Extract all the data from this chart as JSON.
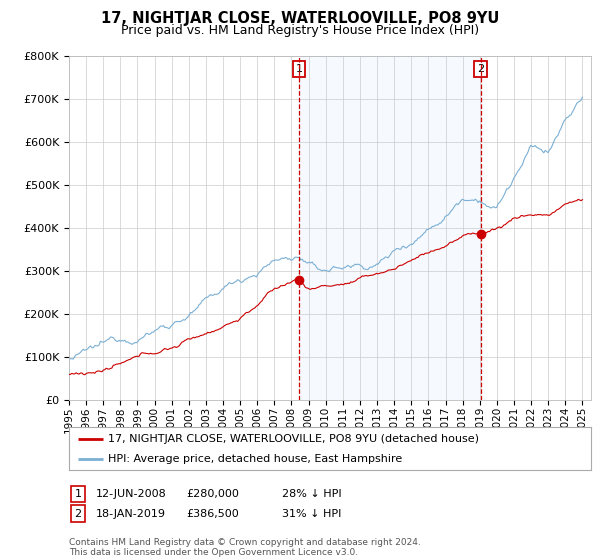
{
  "title": "17, NIGHTJAR CLOSE, WATERLOOVILLE, PO8 9YU",
  "subtitle": "Price paid vs. HM Land Registry's House Price Index (HPI)",
  "ylabel_ticks": [
    "£0",
    "£100K",
    "£200K",
    "£300K",
    "£400K",
    "£500K",
    "£600K",
    "£700K",
    "£800K"
  ],
  "ylim": [
    0,
    800000
  ],
  "xlim_start": 1995.0,
  "xlim_end": 2025.5,
  "sale1_x": 2008.45,
  "sale1_y": 280000,
  "sale1_label": "1",
  "sale1_date": "12-JUN-2008",
  "sale1_price": "£280,000",
  "sale1_hpi": "28% ↓ HPI",
  "sale2_x": 2019.05,
  "sale2_y": 386500,
  "sale2_label": "2",
  "sale2_date": "18-JAN-2019",
  "sale2_price": "£386,500",
  "sale2_hpi": "31% ↓ HPI",
  "line_property_color": "#cc0000",
  "line_hpi_color": "#7bafd4",
  "shade_color": "#ddeeff",
  "marker_box_color": "#cc0000",
  "legend_property_label": "17, NIGHTJAR CLOSE, WATERLOOVILLE, PO8 9YU (detached house)",
  "legend_hpi_label": "HPI: Average price, detached house, East Hampshire",
  "footnote": "Contains HM Land Registry data © Crown copyright and database right 2024.\nThis data is licensed under the Open Government Licence v3.0.",
  "background_color": "#ffffff",
  "grid_color": "#cccccc",
  "title_fontsize": 10.5,
  "subtitle_fontsize": 9,
  "tick_fontsize": 8,
  "legend_fontsize": 8,
  "footnote_fontsize": 6.5
}
